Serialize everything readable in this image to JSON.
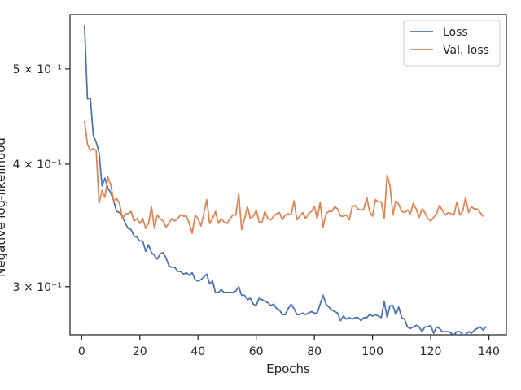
{
  "chart_data": {
    "type": "line",
    "title": "",
    "xlabel": "Epochs",
    "ylabel": "Negative log-likelihood",
    "xlim": [
      -4,
      146
    ],
    "ylim": [
      0.268,
      0.568
    ],
    "yscale": "log",
    "grid": false,
    "legend_position": "top-right",
    "x_ticks": [
      0,
      20,
      40,
      60,
      80,
      100,
      120,
      140
    ],
    "x_tick_labels": [
      "0",
      "20",
      "40",
      "60",
      "80",
      "100",
      "120",
      "140"
    ],
    "y_ticks": [
      0.3,
      0.4,
      0.5
    ],
    "y_tick_labels": [
      "3 × 10⁻¹",
      "4 × 10⁻¹",
      "5 × 10⁻¹"
    ],
    "series": [
      {
        "name": "Loss",
        "color": "#4c72b0",
        "x_start": 1,
        "x_step": 1,
        "values": [
          0.553,
          0.466,
          0.467,
          0.428,
          0.421,
          0.411,
          0.38,
          0.387,
          0.378,
          0.374,
          0.367,
          0.358,
          0.357,
          0.354,
          0.348,
          0.344,
          0.343,
          0.338,
          0.337,
          0.334,
          0.334,
          0.326,
          0.331,
          0.325,
          0.323,
          0.32,
          0.324,
          0.325,
          0.321,
          0.315,
          0.314,
          0.314,
          0.311,
          0.311,
          0.309,
          0.31,
          0.308,
          0.31,
          0.305,
          0.304,
          0.305,
          0.307,
          0.309,
          0.302,
          0.304,
          0.296,
          0.296,
          0.298,
          0.296,
          0.296,
          0.296,
          0.296,
          0.297,
          0.3,
          0.294,
          0.294,
          0.291,
          0.292,
          0.288,
          0.287,
          0.292,
          0.291,
          0.29,
          0.289,
          0.287,
          0.288,
          0.285,
          0.284,
          0.281,
          0.281,
          0.285,
          0.288,
          0.285,
          0.281,
          0.281,
          0.282,
          0.281,
          0.282,
          0.283,
          0.282,
          0.282,
          0.288,
          0.294,
          0.288,
          0.286,
          0.284,
          0.283,
          0.282,
          0.277,
          0.28,
          0.278,
          0.279,
          0.278,
          0.279,
          0.279,
          0.277,
          0.279,
          0.279,
          0.281,
          0.28,
          0.281,
          0.28,
          0.279,
          0.29,
          0.279,
          0.287,
          0.287,
          0.281,
          0.286,
          0.279,
          0.278,
          0.273,
          0.272,
          0.273,
          0.274,
          0.273,
          0.27,
          0.273,
          0.273,
          0.274,
          0.269,
          0.273,
          0.272,
          0.27,
          0.27,
          0.27,
          0.269,
          0.268,
          0.27,
          0.27,
          0.268,
          0.268,
          0.27,
          0.269,
          0.271,
          0.272,
          0.273,
          0.271,
          0.273
        ]
      },
      {
        "name": "Val. loss",
        "color": "#dd8452",
        "x_start": 1,
        "x_step": 1,
        "values": [
          0.442,
          0.419,
          0.413,
          0.415,
          0.413,
          0.365,
          0.376,
          0.37,
          0.388,
          0.381,
          0.367,
          0.369,
          0.365,
          0.352,
          0.356,
          0.356,
          0.358,
          0.35,
          0.352,
          0.348,
          0.352,
          0.344,
          0.348,
          0.362,
          0.344,
          0.355,
          0.352,
          0.35,
          0.345,
          0.348,
          0.352,
          0.35,
          0.352,
          0.355,
          0.354,
          0.354,
          0.348,
          0.34,
          0.355,
          0.352,
          0.346,
          0.356,
          0.368,
          0.348,
          0.352,
          0.358,
          0.348,
          0.352,
          0.349,
          0.348,
          0.352,
          0.355,
          0.355,
          0.373,
          0.343,
          0.352,
          0.362,
          0.352,
          0.354,
          0.359,
          0.349,
          0.349,
          0.358,
          0.352,
          0.351,
          0.354,
          0.356,
          0.357,
          0.351,
          0.355,
          0.356,
          0.355,
          0.367,
          0.351,
          0.354,
          0.357,
          0.352,
          0.356,
          0.358,
          0.362,
          0.352,
          0.366,
          0.345,
          0.356,
          0.358,
          0.358,
          0.362,
          0.36,
          0.354,
          0.354,
          0.355,
          0.351,
          0.362,
          0.363,
          0.36,
          0.359,
          0.36,
          0.37,
          0.358,
          0.354,
          0.368,
          0.366,
          0.366,
          0.352,
          0.39,
          0.38,
          0.355,
          0.367,
          0.364,
          0.358,
          0.357,
          0.359,
          0.356,
          0.365,
          0.36,
          0.353,
          0.36,
          0.357,
          0.352,
          0.35,
          0.353,
          0.356,
          0.363,
          0.359,
          0.355,
          0.357,
          0.356,
          0.355,
          0.366,
          0.355,
          0.358,
          0.37,
          0.357,
          0.362,
          0.36,
          0.36,
          0.357,
          0.354
        ]
      }
    ]
  }
}
